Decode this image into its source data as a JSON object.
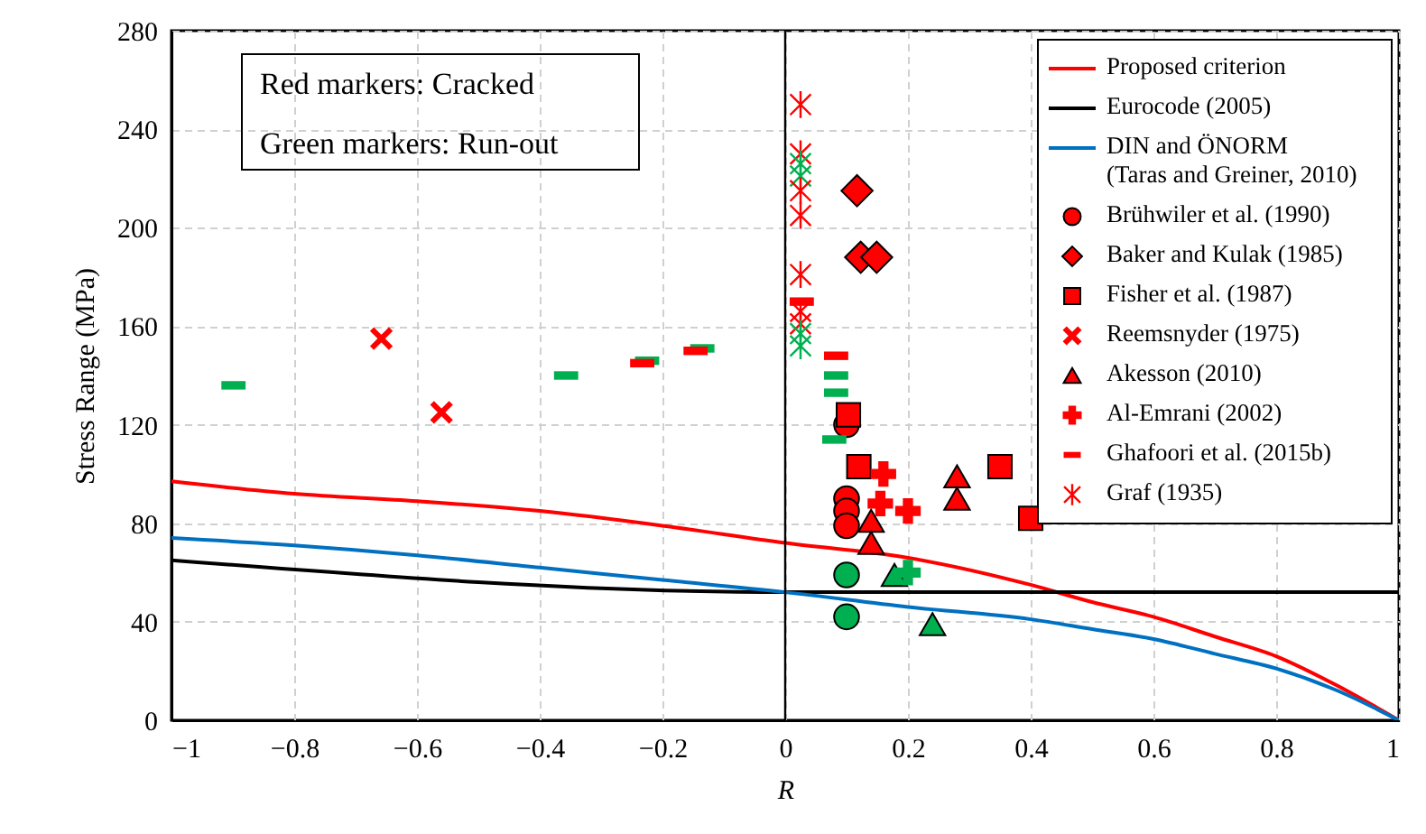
{
  "chart_data": {
    "type": "scatter",
    "xlabel": "R",
    "ylabel": "Stress Range (MPa)",
    "xlim": [
      -1,
      1
    ],
    "xticks": [
      -1,
      -0.8,
      -0.6,
      -0.4,
      -0.2,
      0,
      0.2,
      0.4,
      0.6,
      0.8,
      1
    ],
    "ylim": [
      0,
      280
    ],
    "yticks": [
      0,
      40,
      80,
      120,
      160,
      200,
      240,
      280
    ],
    "grid": true,
    "legend": "top right",
    "annotations": [
      "Red markers: Cracked",
      "Green markers: Run-out"
    ],
    "ref_lines": [
      {
        "axis": "x",
        "value": 0,
        "color": "#000000"
      }
    ],
    "series": [
      {
        "name": "Proposed criterion",
        "type": "line",
        "color": "#ff0000",
        "x": [
          -1,
          -0.8,
          -0.6,
          -0.4,
          -0.2,
          0,
          0.2,
          0.4,
          0.5,
          0.6,
          0.7,
          0.8,
          0.9,
          1
        ],
        "values": [
          97,
          92,
          89,
          85,
          79,
          72,
          66,
          55,
          48,
          42,
          34,
          26,
          14,
          0
        ]
      },
      {
        "name": "Eurocode (2005)",
        "type": "line",
        "color": "#000000",
        "x": [
          -1,
          0,
          1
        ],
        "values": [
          65,
          52,
          52
        ]
      },
      {
        "name": "DIN and ÖNORM\n(Taras and Greiner, 2010)",
        "type": "line",
        "color": "#0070c0",
        "x": [
          -1,
          -0.8,
          -0.6,
          -0.4,
          -0.2,
          0,
          0.2,
          0.4,
          0.5,
          0.6,
          0.7,
          0.8,
          0.9,
          1
        ],
        "values": [
          74,
          71,
          67,
          62,
          57,
          52,
          46,
          41,
          37,
          33,
          27,
          21,
          12,
          0
        ]
      },
      {
        "name": "Brühwiler et al. (1990)",
        "marker": "circle",
        "color": "#ff0000",
        "x": [
          0.1,
          0.1,
          0.1,
          0.1,
          0.1,
          0.1
        ],
        "values": [
          120,
          90,
          85,
          79,
          59,
          42
        ],
        "colors": [
          "#ff0000",
          "#ff0000",
          "#ff0000",
          "#ff0000",
          "#00b050",
          "#00b050"
        ]
      },
      {
        "name": "Baker and Kulak (1985)",
        "marker": "diamond",
        "color": "#ff0000",
        "x": [
          0.117,
          0.123,
          0.149
        ],
        "values": [
          215,
          188,
          188
        ],
        "colors": [
          "#ff0000",
          "#ff0000",
          "#ff0000"
        ]
      },
      {
        "name": "Fisher et al. (1987)",
        "marker": "square",
        "color": "#ff0000",
        "x": [
          0.103,
          0.12,
          0.35,
          0.4
        ],
        "values": [
          124,
          103,
          103,
          82
        ],
        "colors": [
          "#ff0000",
          "#ff0000",
          "#ff0000",
          "#ff0000"
        ]
      },
      {
        "name": "Reemsnyder (1975)",
        "color": "#ff0000",
        "x": [
          -0.658,
          -0.56
        ],
        "values": [
          155,
          125
        ],
        "colors": [
          "#ff0000",
          "#ff0000"
        ]
      },
      {
        "name": "Akesson (2010)",
        "marker": "triangle",
        "color": "#ff0000",
        "x": [
          0.14,
          0.14,
          0.28,
          0.28,
          0.178,
          0.24
        ],
        "values": [
          81,
          72,
          99,
          90,
          59,
          39
        ],
        "colors": [
          "#ff0000",
          "#ff0000",
          "#ff0000",
          "#ff0000",
          "#00b050",
          "#00b050"
        ]
      },
      {
        "name": "Al-Emrani (2002)",
        "marker": "cross",
        "color": "#ff0000",
        "x": [
          0.16,
          0.155,
          0.2,
          0.2
        ],
        "values": [
          100,
          88,
          85,
          60
        ],
        "colors": [
          "#ff0000",
          "#ff0000",
          "#ff0000",
          "#00b050"
        ]
      },
      {
        "name": "Ghafoori et al. (2015b)",
        "color": "#ff0000",
        "x": [
          -0.899,
          -0.357,
          -0.225,
          -0.233,
          -0.135,
          -0.146,
          0.027,
          0.083,
          0.083,
          0.083,
          0.08
        ],
        "values": [
          136,
          140,
          146,
          145,
          151,
          150,
          170,
          148,
          140,
          133,
          114
        ],
        "colors": [
          "#00b050",
          "#00b050",
          "#00b050",
          "#ff0000",
          "#00b050",
          "#ff0000",
          "#ff0000",
          "#ff0000",
          "#00b050",
          "#00b050",
          "#00b050"
        ]
      },
      {
        "name": "Graf (1935)",
        "color": "#ff0000",
        "x": [
          0.025,
          0.025,
          0.025,
          0.025,
          0.025,
          0.025,
          0.025,
          0.025,
          0.025,
          0.025,
          0.025
        ],
        "values": [
          250,
          230,
          226,
          221,
          215,
          205,
          181,
          166,
          161,
          152,
          157
        ],
        "colors": [
          "#ff0000",
          "#ff0000",
          "#00b050",
          "#00b050",
          "#ff0000",
          "#ff0000",
          "#ff0000",
          "#ff0000",
          "#ff0000",
          "#00b050",
          "#00b050"
        ]
      }
    ]
  }
}
